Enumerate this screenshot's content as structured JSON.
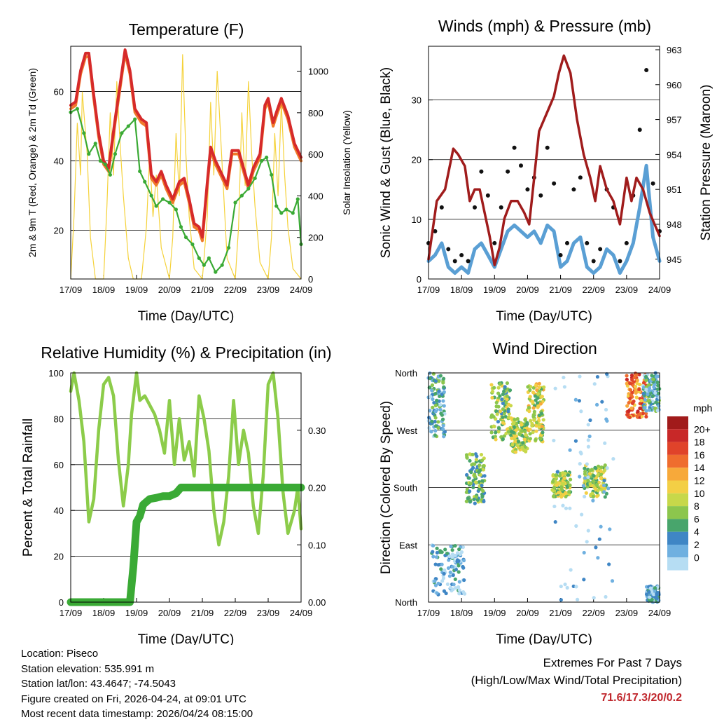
{
  "x_ticks": [
    "17/09",
    "18/09",
    "19/09",
    "20/09",
    "21/09",
    "22/09",
    "23/09",
    "24/09"
  ],
  "chart_data": [
    {
      "type": "line",
      "title": "Temperature (F)",
      "xlabel": "Time (Day/UTC)",
      "ylabel": "2m & 9m T (Red, Orange) & 2m Td (Green)",
      "y2label": "Solar Insolation (Yellow)",
      "ylim": [
        6,
        73
      ],
      "y_ticks": [
        20,
        40,
        60
      ],
      "y2lim": [
        0,
        1120
      ],
      "y2_ticks": [
        0,
        200,
        400,
        600,
        800,
        1000
      ],
      "xlim": [
        0,
        7
      ],
      "series": [
        {
          "name": "2m T",
          "color": "#d62a2a",
          "x": [
            0,
            0.15,
            0.3,
            0.45,
            0.55,
            0.7,
            0.85,
            1.0,
            1.15,
            1.35,
            1.5,
            1.65,
            1.8,
            1.95,
            2.15,
            2.3,
            2.45,
            2.6,
            2.75,
            2.9,
            3.1,
            3.3,
            3.45,
            3.6,
            3.75,
            3.9,
            4.0,
            4.15,
            4.25,
            4.4,
            4.55,
            4.75,
            4.9,
            5.1,
            5.25,
            5.4,
            5.55,
            5.75,
            5.9,
            6.0,
            6.15,
            6.25,
            6.4,
            6.6,
            6.8,
            7.0
          ],
          "values": [
            56,
            57,
            66,
            71,
            71,
            59,
            48,
            40,
            38,
            52,
            62,
            72,
            66,
            55,
            52,
            51,
            36,
            34,
            37,
            33,
            29,
            34,
            35,
            29,
            22,
            21,
            18,
            34,
            44,
            40,
            37,
            33,
            43,
            43,
            38,
            33,
            38,
            42,
            56,
            58,
            51,
            54,
            58,
            53,
            45,
            41
          ]
        },
        {
          "name": "9m T",
          "color": "#f07a2a",
          "x": [
            0,
            0.15,
            0.3,
            0.45,
            0.55,
            0.7,
            0.85,
            1.0,
            1.15,
            1.35,
            1.5,
            1.65,
            1.8,
            1.95,
            2.15,
            2.3,
            2.45,
            2.6,
            2.75,
            2.9,
            3.1,
            3.3,
            3.45,
            3.6,
            3.75,
            3.9,
            4.0,
            4.15,
            4.25,
            4.4,
            4.55,
            4.75,
            4.9,
            5.1,
            5.25,
            5.4,
            5.55,
            5.75,
            5.9,
            6.0,
            6.15,
            6.25,
            6.4,
            6.6,
            6.8,
            7.0
          ],
          "values": [
            55,
            56,
            65,
            70,
            70,
            58,
            47,
            39,
            37,
            51,
            61,
            71,
            65,
            54,
            51,
            50,
            35,
            33,
            36,
            32,
            28,
            33,
            34,
            28,
            21,
            20,
            17,
            33,
            43,
            39,
            36,
            32,
            42,
            42,
            37,
            32,
            37,
            41,
            55,
            57,
            50,
            53,
            57,
            52,
            44,
            40
          ]
        },
        {
          "name": "2m Td",
          "color": "#3aaa35",
          "x": [
            0,
            0.2,
            0.4,
            0.55,
            0.75,
            0.9,
            1.05,
            1.2,
            1.35,
            1.55,
            1.75,
            1.95,
            2.1,
            2.25,
            2.45,
            2.6,
            2.8,
            3.0,
            3.2,
            3.35,
            3.5,
            3.7,
            3.9,
            4.05,
            4.2,
            4.4,
            4.6,
            4.8,
            5.0,
            5.2,
            5.4,
            5.6,
            5.8,
            5.95,
            6.1,
            6.25,
            6.4,
            6.55,
            6.75,
            6.9,
            7.0
          ],
          "values": [
            54,
            55,
            48,
            42,
            45,
            40,
            39,
            36,
            42,
            48,
            50,
            52,
            37,
            34,
            30,
            27,
            29,
            28,
            26,
            21,
            18,
            16,
            12,
            10,
            12,
            8,
            10,
            15,
            28,
            30,
            32,
            35,
            40,
            41,
            36,
            27,
            25,
            26,
            25,
            29,
            16
          ]
        },
        {
          "name": "Solar Insolation",
          "color": "#f5d23a",
          "axis": "y2",
          "x": [
            0,
            0.1,
            0.2,
            0.3,
            0.35,
            0.45,
            0.5,
            0.6,
            0.75,
            0.85,
            1.0,
            1.1,
            1.2,
            1.3,
            1.4,
            1.5,
            1.6,
            1.75,
            1.9,
            2.0,
            2.15,
            2.3,
            2.4,
            2.5,
            2.6,
            2.75,
            3.0,
            3.1,
            3.2,
            3.3,
            3.4,
            3.5,
            3.6,
            3.75,
            4.0,
            4.15,
            4.25,
            4.35,
            4.45,
            4.55,
            4.65,
            4.75,
            5.0,
            5.1,
            5.2,
            5.3,
            5.4,
            5.5,
            5.6,
            5.75,
            6.0,
            6.1,
            6.2,
            6.3,
            6.4,
            6.5,
            6.6,
            6.75,
            7.0
          ],
          "values": [
            0,
            300,
            750,
            500,
            900,
            700,
            600,
            200,
            0,
            0,
            0,
            350,
            800,
            500,
            950,
            650,
            400,
            100,
            0,
            0,
            0,
            250,
            600,
            300,
            500,
            150,
            0,
            200,
            700,
            400,
            1080,
            600,
            300,
            50,
            0,
            300,
            850,
            500,
            1000,
            700,
            400,
            100,
            0,
            250,
            800,
            450,
            950,
            600,
            350,
            80,
            0,
            200,
            700,
            400,
            850,
            500,
            250,
            50,
            0
          ]
        }
      ]
    },
    {
      "type": "scatter",
      "title": "Winds (mph) & Pressure (mb)",
      "xlabel": "Time (Day/UTC)",
      "ylabel": "Sonic Wind & Gust (Blue, Black)",
      "y2label": "Station Pressure (Maroon)",
      "ylim": [
        0,
        39
      ],
      "y_ticks": [
        0,
        10,
        20,
        30
      ],
      "y2lim": [
        943.3,
        963.3
      ],
      "y2_ticks": [
        945,
        948,
        951,
        954,
        957,
        960,
        963
      ],
      "xlim": [
        0,
        7
      ],
      "series": [
        {
          "name": "Sonic Wind",
          "color": "#5a9fd4",
          "x": [
            0,
            0.2,
            0.4,
            0.6,
            0.8,
            1.0,
            1.2,
            1.4,
            1.6,
            1.8,
            2.0,
            2.2,
            2.4,
            2.6,
            2.8,
            3.0,
            3.2,
            3.4,
            3.6,
            3.8,
            4.0,
            4.2,
            4.4,
            4.6,
            4.8,
            5.0,
            5.2,
            5.4,
            5.6,
            5.8,
            6.0,
            6.2,
            6.4,
            6.6,
            6.8,
            7.0
          ],
          "values": [
            3,
            4,
            6,
            2,
            1,
            2,
            1,
            5,
            6,
            4,
            2,
            5,
            8,
            9,
            8,
            7,
            8,
            6,
            9,
            8,
            2,
            3,
            6,
            7,
            2,
            1,
            2,
            5,
            4,
            1,
            3,
            6,
            12,
            19,
            7,
            3
          ]
        },
        {
          "name": "Gust",
          "color": "#111111",
          "x": [
            0,
            0.2,
            0.4,
            0.6,
            0.8,
            1.0,
            1.2,
            1.4,
            1.6,
            1.8,
            2.0,
            2.2,
            2.4,
            2.6,
            2.8,
            3.0,
            3.2,
            3.4,
            3.6,
            3.8,
            4.0,
            4.2,
            4.4,
            4.6,
            4.8,
            5.0,
            5.2,
            5.4,
            5.6,
            5.8,
            6.0,
            6.2,
            6.4,
            6.6,
            6.8,
            7.0
          ],
          "values": [
            6,
            8,
            12,
            5,
            3,
            4,
            3,
            12,
            18,
            14,
            6,
            12,
            18,
            22,
            19,
            15,
            17,
            14,
            22,
            16,
            4,
            6,
            15,
            17,
            6,
            3,
            5,
            15,
            12,
            3,
            6,
            14,
            25,
            35,
            16,
            8
          ]
        },
        {
          "name": "Station Pressure",
          "color": "#a01c1c",
          "axis": "y2",
          "x": [
            0,
            0.25,
            0.5,
            0.75,
            0.9,
            1.1,
            1.25,
            1.4,
            1.55,
            1.7,
            1.85,
            2.0,
            2.15,
            2.3,
            2.5,
            2.7,
            2.9,
            3.05,
            3.2,
            3.35,
            3.5,
            3.65,
            3.8,
            3.95,
            4.1,
            4.3,
            4.5,
            4.7,
            4.9,
            5.05,
            5.2,
            5.4,
            5.6,
            5.8,
            6.0,
            6.15,
            6.3,
            6.5,
            6.7,
            6.85,
            7.0
          ],
          "values": [
            945,
            950,
            951,
            954.5,
            954,
            953,
            950,
            951,
            951,
            949,
            947,
            944.5,
            946,
            948.5,
            950,
            950,
            949,
            948,
            952,
            956,
            957,
            958,
            959,
            961,
            962.5,
            961,
            957,
            954,
            952,
            950,
            953,
            951,
            950,
            948,
            952,
            950,
            952,
            951,
            949,
            948,
            947
          ]
        }
      ]
    },
    {
      "type": "line",
      "title": "Relative Humidity (%) & Precipitation (in)",
      "xlabel": "Time (Day/UTC)",
      "ylabel": "Percent & Total Rainfall",
      "ylim": [
        0,
        100
      ],
      "y_ticks": [
        0,
        20,
        40,
        60,
        80,
        100
      ],
      "y2lim": [
        0,
        0.4
      ],
      "y2_ticks": [
        "0.00",
        "0.10",
        "0.20",
        "0.30"
      ],
      "xlim": [
        0,
        7
      ],
      "series": [
        {
          "name": "Relative Humidity",
          "color": "#8ccc4a",
          "x": [
            0,
            0.1,
            0.25,
            0.4,
            0.55,
            0.7,
            0.85,
            1.0,
            1.15,
            1.3,
            1.45,
            1.6,
            1.75,
            1.85,
            2.0,
            2.1,
            2.25,
            2.4,
            2.55,
            2.7,
            2.85,
            3.0,
            3.15,
            3.3,
            3.45,
            3.6,
            3.75,
            3.9,
            4.05,
            4.2,
            4.35,
            4.5,
            4.65,
            4.8,
            4.95,
            5.1,
            5.25,
            5.4,
            5.55,
            5.7,
            5.85,
            6.0,
            6.15,
            6.3,
            6.45,
            6.6,
            6.8,
            6.9,
            7.0
          ],
          "values": [
            92,
            100,
            88,
            70,
            35,
            45,
            75,
            95,
            98,
            90,
            62,
            42,
            60,
            82,
            100,
            88,
            90,
            86,
            82,
            75,
            65,
            88,
            60,
            80,
            62,
            70,
            55,
            90,
            80,
            66,
            40,
            25,
            35,
            55,
            88,
            60,
            75,
            65,
            42,
            30,
            55,
            95,
            100,
            80,
            48,
            30,
            40,
            50,
            32
          ]
        },
        {
          "name": "Total Precipitation",
          "color": "#3aaa35",
          "axis": "y2",
          "x": [
            0,
            1.8,
            1.85,
            1.9,
            1.95,
            2.0,
            2.1,
            2.2,
            2.3,
            2.4,
            2.6,
            2.8,
            3.0,
            3.2,
            3.35,
            7.0
          ],
          "values": [
            0,
            0,
            0.03,
            0.06,
            0.1,
            0.14,
            0.15,
            0.17,
            0.175,
            0.18,
            0.182,
            0.185,
            0.185,
            0.19,
            0.2,
            0.2
          ]
        }
      ]
    },
    {
      "type": "scatter",
      "title": "Wind Direction",
      "xlabel": "Time (Day/UTC)",
      "ylabel": "Direction (Colored By Speed)",
      "y_ticks": [
        "North",
        "East",
        "South",
        "West",
        "North"
      ],
      "ylim": [
        0,
        360
      ],
      "xlim": [
        0,
        7
      ],
      "legend": {
        "title": "mph",
        "levels": [
          "20+",
          "18",
          "16",
          "14",
          "12",
          "10",
          "8",
          "6",
          "4",
          "2",
          "0"
        ],
        "colors": [
          "#a11b1b",
          "#c82828",
          "#e0432a",
          "#ef6d2e",
          "#f7a93a",
          "#f3cf45",
          "#c7d84a",
          "#8cc64d",
          "#48a56c",
          "#3f86c5",
          "#6fb0e0",
          "#b6ddf3"
        ],
        "position": "right"
      },
      "clusters": [
        {
          "x0": 0.0,
          "x1": 0.5,
          "dir0": 260,
          "dir1": 360,
          "speed": 4
        },
        {
          "x0": 0.1,
          "x1": 1.1,
          "dir0": 10,
          "dir1": 90,
          "speed": 3
        },
        {
          "x0": 1.15,
          "x1": 1.7,
          "dir0": 155,
          "dir1": 235,
          "speed": 7
        },
        {
          "x0": 1.9,
          "x1": 2.5,
          "dir0": 255,
          "dir1": 345,
          "speed": 8
        },
        {
          "x0": 2.5,
          "x1": 3.0,
          "dir0": 235,
          "dir1": 290,
          "speed": 9
        },
        {
          "x0": 3.0,
          "x1": 3.5,
          "dir0": 250,
          "dir1": 345,
          "speed": 10
        },
        {
          "x0": 3.75,
          "x1": 4.3,
          "dir0": 165,
          "dir1": 205,
          "speed": 9
        },
        {
          "x0": 4.7,
          "x1": 5.4,
          "dir0": 165,
          "dir1": 215,
          "speed": 9
        },
        {
          "x0": 6.0,
          "x1": 6.6,
          "dir0": 290,
          "dir1": 360,
          "speed": 16
        },
        {
          "x0": 6.5,
          "x1": 7.0,
          "dir0": 300,
          "dir1": 360,
          "speed": 4
        },
        {
          "x0": 3.75,
          "x1": 5.6,
          "dir0": 0,
          "dir1": 360,
          "speed": 1
        },
        {
          "x0": 6.6,
          "x1": 7.0,
          "dir0": 0,
          "dir1": 25,
          "speed": 3
        }
      ]
    }
  ],
  "info": {
    "location": "Location: Piseco",
    "elevation": "Station elevation: 535.991 m",
    "latlon": "Station lat/lon: 43.4647; -74.5043",
    "created": "Figure created on Fri, 2026-04-24, at 09:01 UTC",
    "recent": "Most recent data timestamp: 2026/04/24 08:15:00"
  },
  "extremes": {
    "title": "Extremes For Past 7 Days",
    "subtitle": "(High/Low/Max Wind/Total Precipitation)",
    "values": "71.6/17.3/20/0.2"
  }
}
